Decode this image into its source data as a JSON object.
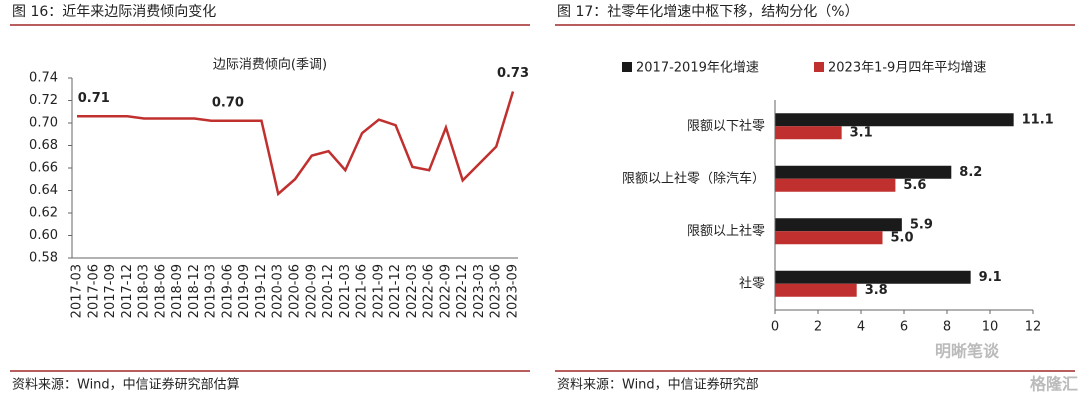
{
  "chart_data": [
    {
      "type": "line",
      "figure_title": "图 16：近年来边际消费倾向变化",
      "title": "边际消费倾向(季调)",
      "source": "资料来源：Wind，中信证券研究部估算",
      "color": "#c0302e",
      "categories": [
        "2017-03",
        "2017-06",
        "2017-09",
        "2017-12",
        "2018-03",
        "2018-06",
        "2018-09",
        "2018-12",
        "2019-03",
        "2019-06",
        "2019-09",
        "2019-12",
        "2020-03",
        "2020-06",
        "2020-09",
        "2020-12",
        "2021-03",
        "2021-06",
        "2021-09",
        "2021-12",
        "2022-03",
        "2022-06",
        "2022-09",
        "2022-12",
        "2023-03",
        "2023-06",
        "2023-09"
      ],
      "values": [
        0.706,
        0.706,
        0.706,
        0.706,
        0.704,
        0.704,
        0.704,
        0.704,
        0.702,
        0.702,
        0.702,
        0.702,
        0.637,
        0.65,
        0.671,
        0.675,
        0.658,
        0.691,
        0.703,
        0.698,
        0.661,
        0.658,
        0.696,
        0.649,
        0.664,
        0.679,
        0.728
      ],
      "value_labels": [
        null,
        "0.71",
        null,
        null,
        null,
        null,
        null,
        null,
        null,
        "0.70",
        null,
        null,
        null,
        null,
        null,
        null,
        null,
        null,
        null,
        null,
        null,
        null,
        null,
        null,
        null,
        null,
        "0.73"
      ],
      "ylim": [
        0.58,
        0.74
      ],
      "yticks": [
        0.58,
        {
          "value": 0.6,
          "label": "0.60"
        },
        0.62,
        0.64,
        0.66,
        0.68,
        {
          "value": 0.7,
          "label": "0.70"
        },
        0.72,
        0.74
      ]
    },
    {
      "type": "hbar",
      "figure_title": "图 17：社零年化增速中枢下移，结构分化（%）",
      "source": "资料来源：Wind，中信证券研究部",
      "categories": [
        "限额以下社零",
        "限额以上社零（除汽车）",
        "限额以上社零",
        "社零"
      ],
      "series": [
        {
          "name": "2017-2019年化增速",
          "color": "#1a1a1a",
          "values": [
            11.1,
            8.2,
            5.9,
            9.1
          ]
        },
        {
          "name": "2023年1-9月四年平均增速",
          "color": "#c0302e",
          "values": [
            3.1,
            5.6,
            5.0,
            3.8
          ],
          "value_labels": [
            "3.1",
            "5.6",
            "5.0",
            "3.8"
          ]
        }
      ],
      "xlim": [
        0,
        12
      ],
      "xticks": [
        0,
        2,
        4,
        6,
        8,
        10,
        12
      ],
      "legend": "top"
    }
  ],
  "watermarks": [
    "明晰笔谈",
    "格隆汇"
  ]
}
